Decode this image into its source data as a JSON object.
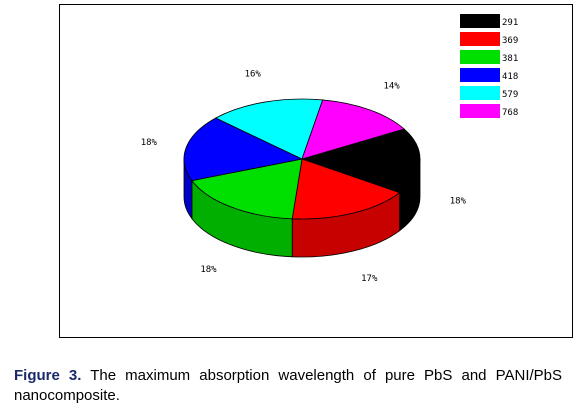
{
  "chart_data": {
    "type": "pie",
    "style": "3d",
    "legend_position": "top-right",
    "slices": [
      {
        "label": "291",
        "percent_label": "18%",
        "value": 18,
        "color": "#000000"
      },
      {
        "label": "369",
        "percent_label": "17%",
        "value": 17,
        "color": "#ff0000"
      },
      {
        "label": "381",
        "percent_label": "18%",
        "value": 18,
        "color": "#00e000"
      },
      {
        "label": "418",
        "percent_label": "18%",
        "value": 18,
        "color": "#0000ff"
      },
      {
        "label": "579",
        "percent_label": "16%",
        "value": 16,
        "color": "#00ffff"
      },
      {
        "label": "768",
        "percent_label": "14%",
        "value": 14,
        "color": "#ff00ff"
      }
    ]
  },
  "caption": {
    "label": "Figure 3.",
    "text": "The maximum absorption wavelength of pure PbS and PANI/PbS nanocomposite."
  }
}
